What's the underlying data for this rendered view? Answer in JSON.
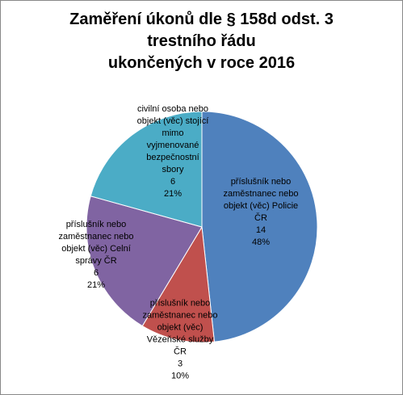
{
  "chart_data": {
    "type": "pie",
    "title": [
      "Zaměření úkonů dle § 158d odst. 3",
      "trestního řádu",
      "ukončených v roce 2016"
    ],
    "categories": [
      "příslušník nebo zaměstnanec nebo objekt (věc) Policie ČR",
      "příslušník nebo zaměstnanec nebo objekt (věc) Vězeňské služby ČR",
      "příslušník nebo zaměstnanec nebo objekt (věc) Celní správy ČR",
      "civilní osoba nebo objekt (věc) stojící mimo vyjmenované bezpečnostní sbory"
    ],
    "values": [
      14,
      3,
      6,
      6
    ],
    "percent_labels": [
      "48%",
      "10%",
      "21%",
      "21%"
    ],
    "colors": [
      "#4f81bd",
      "#c0504d",
      "#8064a2",
      "#4bacc6"
    ]
  }
}
